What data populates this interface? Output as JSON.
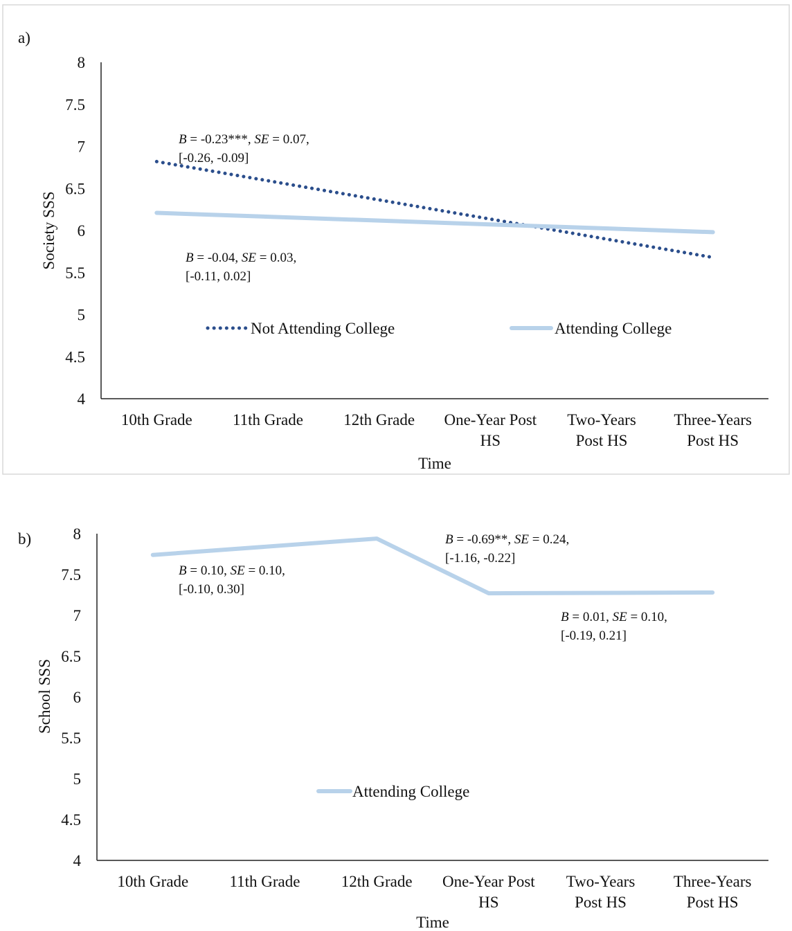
{
  "chart_data": [
    {
      "panel_label": "a)",
      "type": "line",
      "ylabel": "Society SSS",
      "xlabel": "Time",
      "ylim": [
        4,
        8
      ],
      "yticks": [
        "8",
        "7.5",
        "7",
        "6.5",
        "6",
        "5.5",
        "5",
        "4.5",
        "4"
      ],
      "categories": [
        [
          "10th Grade"
        ],
        [
          "11th Grade"
        ],
        [
          "12th Grade"
        ],
        [
          "One-Year Post",
          "HS"
        ],
        [
          "Two-Years",
          "Post HS"
        ],
        [
          "Three-Years",
          "Post HS"
        ]
      ],
      "series": [
        {
          "name": "Not Attending College",
          "style": "dotted",
          "color": "#2b4e8c",
          "x": [
            0,
            5
          ],
          "values": [
            6.82,
            5.68
          ]
        },
        {
          "name": "Attending College",
          "style": "solid",
          "color": "#b8d2ea",
          "x": [
            0,
            5
          ],
          "values": [
            6.21,
            5.98
          ]
        }
      ],
      "annotations": [
        {
          "line1": [
            {
              "text": "B",
              "italic": true
            },
            {
              "text": " = -0.23***, ",
              "italic": false
            },
            {
              "text": "SE",
              "italic": true
            },
            {
              "text": " = 0.07,",
              "italic": false
            }
          ],
          "line2": "[-0.26, -0.09]"
        },
        {
          "line1": [
            {
              "text": "B",
              "italic": true
            },
            {
              "text": " = -0.04, ",
              "italic": false
            },
            {
              "text": "SE",
              "italic": true
            },
            {
              "text": " = 0.03,",
              "italic": false
            }
          ],
          "line2": "[-0.11, 0.02]"
        }
      ],
      "legend": [
        "Not Attending College",
        "Attending College"
      ]
    },
    {
      "panel_label": "b)",
      "type": "line",
      "ylabel": "School SSS",
      "xlabel": "Time",
      "ylim": [
        4,
        8
      ],
      "yticks": [
        "8",
        "7.5",
        "7",
        "6.5",
        "6",
        "5.5",
        "5",
        "4.5",
        "4"
      ],
      "categories": [
        [
          "10th Grade"
        ],
        [
          "11th Grade"
        ],
        [
          "12th Grade"
        ],
        [
          "One-Year Post",
          "HS"
        ],
        [
          "Two-Years",
          "Post HS"
        ],
        [
          "Three-Years",
          "Post HS"
        ]
      ],
      "series": [
        {
          "name": "Attending College",
          "style": "solid",
          "color": "#b8d2ea",
          "x": [
            0,
            2,
            3,
            5
          ],
          "values": [
            7.74,
            7.94,
            7.27,
            7.28
          ]
        }
      ],
      "annotations": [
        {
          "line1": [
            {
              "text": "B",
              "italic": true
            },
            {
              "text": " = 0.10, ",
              "italic": false
            },
            {
              "text": "SE",
              "italic": true
            },
            {
              "text": " = 0.10,",
              "italic": false
            }
          ],
          "line2": "[-0.10, 0.30]"
        },
        {
          "line1": [
            {
              "text": "B",
              "italic": true
            },
            {
              "text": " = -0.69**, ",
              "italic": false
            },
            {
              "text": "SE",
              "italic": true
            },
            {
              "text": " = 0.24,",
              "italic": false
            }
          ],
          "line2": "[-1.16, -0.22]"
        },
        {
          "line1": [
            {
              "text": "B",
              "italic": true
            },
            {
              "text": " = 0.01, ",
              "italic": false
            },
            {
              "text": "SE",
              "italic": true
            },
            {
              "text": " = 0.10,",
              "italic": false
            }
          ],
          "line2": "[-0.19, 0.21]"
        }
      ],
      "legend": [
        "Attending College"
      ]
    }
  ]
}
